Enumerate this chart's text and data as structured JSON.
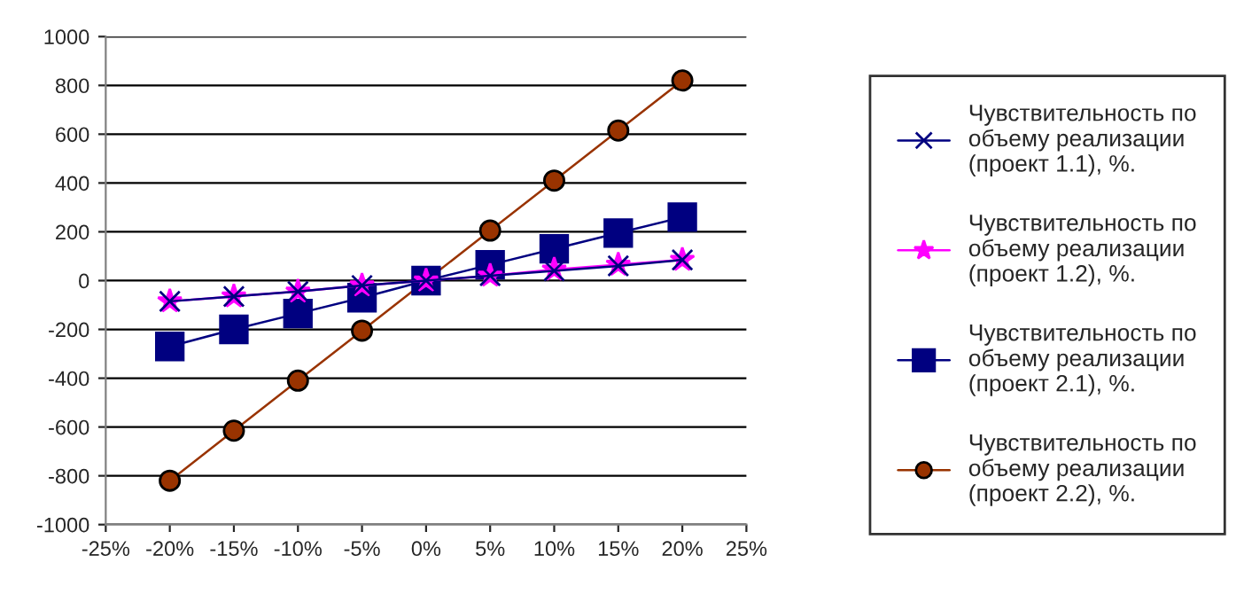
{
  "chart_data": {
    "type": "line",
    "x": [
      -20,
      -15,
      -10,
      -5,
      0,
      5,
      10,
      15,
      20
    ],
    "series": [
      {
        "name": "Чувствительность по объему реализации (проект 1.1), %.",
        "color": "#000080",
        "marker": "cross",
        "values": [
          -85,
          -65,
          -45,
          -20,
          0,
          20,
          40,
          60,
          85
        ]
      },
      {
        "name": "Чувствительность по объему реализации (проект 1.2), %.",
        "color": "#ff00ff",
        "marker": "star",
        "values": [
          -85,
          -65,
          -45,
          -20,
          0,
          20,
          45,
          65,
          85
        ]
      },
      {
        "name": "Чувствительность по объему реализации (проект 2.1), %.",
        "color": "#000080",
        "marker": "square",
        "values": [
          -270,
          -200,
          -135,
          -70,
          0,
          65,
          130,
          195,
          260
        ]
      },
      {
        "name": "Чувствительность по объему реализации (проект 2.2), %.",
        "color": "#993300",
        "marker": "circle",
        "values": [
          -820,
          -615,
          -410,
          -205,
          0,
          205,
          410,
          615,
          820
        ]
      }
    ],
    "xlim": [
      -25,
      25
    ],
    "xticks": [
      {
        "value": -25,
        "label": "-25%"
      },
      {
        "value": -20,
        "label": "-20%"
      },
      {
        "value": -15,
        "label": "-15%"
      },
      {
        "value": -10,
        "label": "-10%"
      },
      {
        "value": -5,
        "label": "-5%"
      },
      {
        "value": 0,
        "label": "0%"
      },
      {
        "value": 5,
        "label": "5%"
      },
      {
        "value": 10,
        "label": "10%"
      },
      {
        "value": 15,
        "label": "15%"
      },
      {
        "value": 20,
        "label": "20%"
      },
      {
        "value": 25,
        "label": "25%"
      }
    ],
    "ylim": [
      -1000,
      1000
    ],
    "yticks": [
      -1000,
      -800,
      -600,
      -400,
      -200,
      0,
      200,
      400,
      600,
      800,
      1000
    ],
    "grid": "y",
    "legend": "right"
  }
}
